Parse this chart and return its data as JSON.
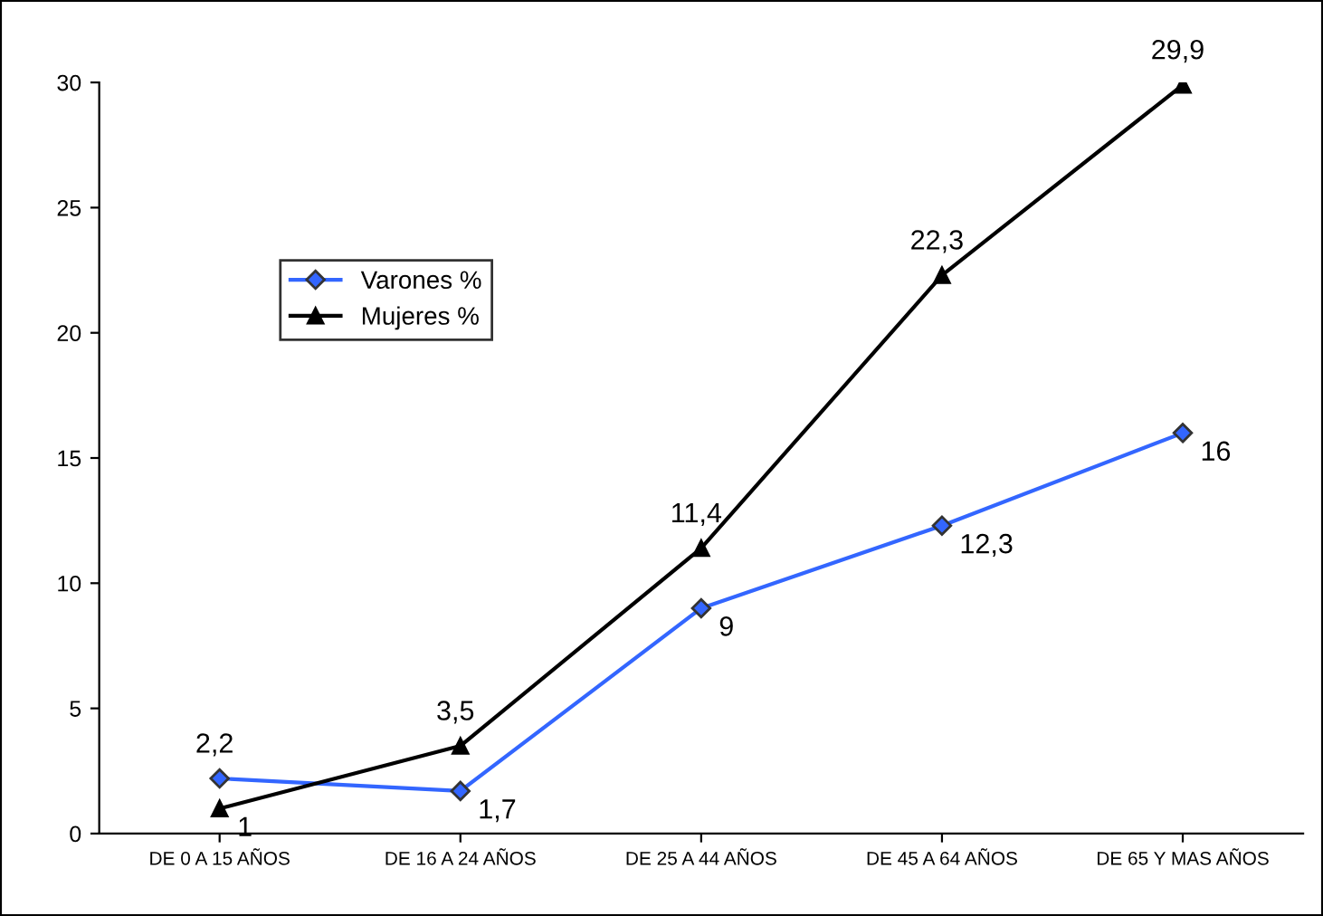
{
  "chart_data": {
    "type": "line",
    "categories": [
      "DE 0 A 15 AÑOS",
      "DE 16 A 24 AÑOS",
      "DE 25 A 44 AÑOS",
      "DE 45 A 64 AÑOS",
      "DE 65 Y MAS AÑOS"
    ],
    "series": [
      {
        "name": "Varones %",
        "color": "#3366ff",
        "marker": "diamond",
        "values": [
          2.2,
          1.7,
          9,
          12.3,
          16
        ],
        "value_labels": [
          "2,2",
          "1,7",
          "9",
          "12,3",
          "16"
        ]
      },
      {
        "name": "Mujeres %",
        "color": "#000000",
        "marker": "triangle",
        "values": [
          1,
          3.5,
          11.4,
          22.3,
          29.9
        ],
        "value_labels": [
          "1",
          "3,5",
          "11,4",
          "22,3",
          "29,9"
        ]
      }
    ],
    "ylim": [
      0,
      30
    ],
    "yticks": [
      0,
      5,
      10,
      15,
      20,
      25,
      30
    ],
    "grid": false,
    "legend": "top left",
    "line_style": "solid"
  }
}
